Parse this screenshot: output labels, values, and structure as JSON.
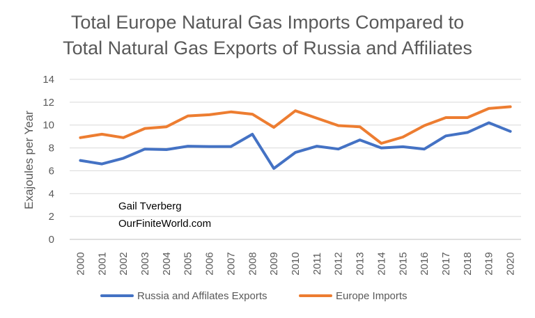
{
  "chart_data": {
    "type": "line",
    "title_lines": [
      "Total Europe Natural Gas Imports Compared to",
      "Total Natural Gas Exports of Russia and Affiliates"
    ],
    "ylabel": "Exajoules per Year",
    "xlabel": "",
    "ylim": [
      0,
      14
    ],
    "yticks": [
      "0",
      "2",
      "4",
      "6",
      "8",
      "10",
      "12",
      "14"
    ],
    "categories": [
      "2000",
      "2001",
      "2002",
      "2003",
      "2004",
      "2005",
      "2006",
      "2007",
      "2008",
      "2009",
      "2010",
      "2011",
      "2012",
      "2013",
      "2014",
      "2015",
      "2016",
      "2017",
      "2018",
      "2019",
      "2020"
    ],
    "grid": "horizontal",
    "legend_position": "bottom",
    "series": [
      {
        "name": "Russia and Affilates Exports",
        "color": "#4472C4",
        "values": [
          6.9,
          6.6,
          7.1,
          7.9,
          7.85,
          8.15,
          8.12,
          8.12,
          9.2,
          6.2,
          7.6,
          8.15,
          7.9,
          8.7,
          8.0,
          8.1,
          7.9,
          9.05,
          9.35,
          10.2,
          9.45
        ]
      },
      {
        "name": "Europe Imports",
        "color": "#ED7D31",
        "values": [
          8.9,
          9.2,
          8.9,
          9.7,
          9.85,
          10.8,
          10.9,
          11.15,
          10.95,
          9.8,
          11.25,
          10.6,
          9.95,
          9.85,
          8.4,
          8.95,
          9.95,
          10.65,
          10.65,
          11.45,
          11.6
        ]
      }
    ],
    "annotations": [
      "Gail Tverberg",
      "OurFiniteWorld.com"
    ]
  }
}
